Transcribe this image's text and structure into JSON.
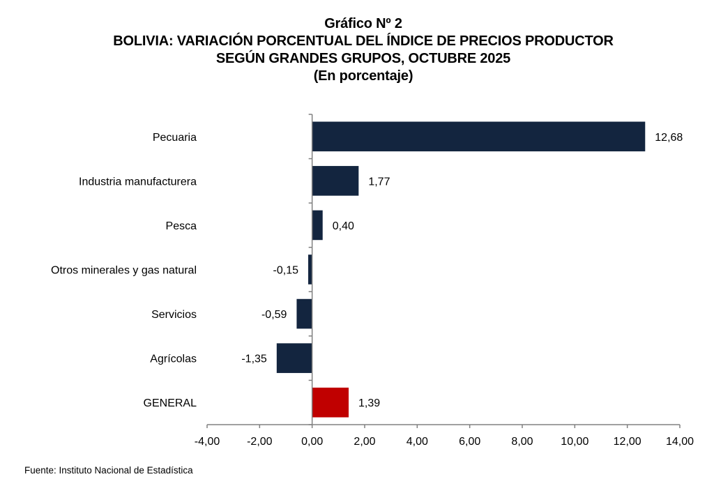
{
  "chart_data": {
    "type": "bar",
    "orientation": "horizontal",
    "title": "Gráfico Nº 2",
    "title_lines": [
      "Gráfico Nº 2",
      "BOLIVIA: VARIACIÓN PORCENTUAL DEL ÍNDICE DE PRECIOS PRODUCTOR",
      "SEGÚN GRANDES GRUPOS, OCTUBRE 2025",
      "(En porcentaje)"
    ],
    "xlabel": "",
    "ylabel": "",
    "categories": [
      "Pecuaria",
      "Industria manufacturera",
      "Pesca",
      "Otros minerales y gas natural",
      "Servicios",
      "Agrícolas",
      "GENERAL"
    ],
    "values": [
      12.68,
      1.77,
      0.4,
      -0.15,
      -0.59,
      -1.35,
      1.39
    ],
    "value_labels": [
      "12,68",
      "1,77",
      "0,40",
      "-0,15",
      "-0,59",
      "-1,35",
      "1,39"
    ],
    "bar_colors": [
      "#13253f",
      "#13253f",
      "#13253f",
      "#13253f",
      "#13253f",
      "#13253f",
      "#c00000"
    ],
    "xlim": [
      -4,
      14
    ],
    "x_ticks": [
      -4,
      -2,
      0,
      2,
      4,
      6,
      8,
      10,
      12,
      14
    ],
    "x_tick_labels": [
      "-4,00",
      "-2,00",
      "0,00",
      "2,00",
      "4,00",
      "6,00",
      "8,00",
      "10,00",
      "12,00",
      "14,00"
    ],
    "grid": false,
    "legend": "none"
  },
  "source": "Fuente: Instituto Nacional de Estadística"
}
